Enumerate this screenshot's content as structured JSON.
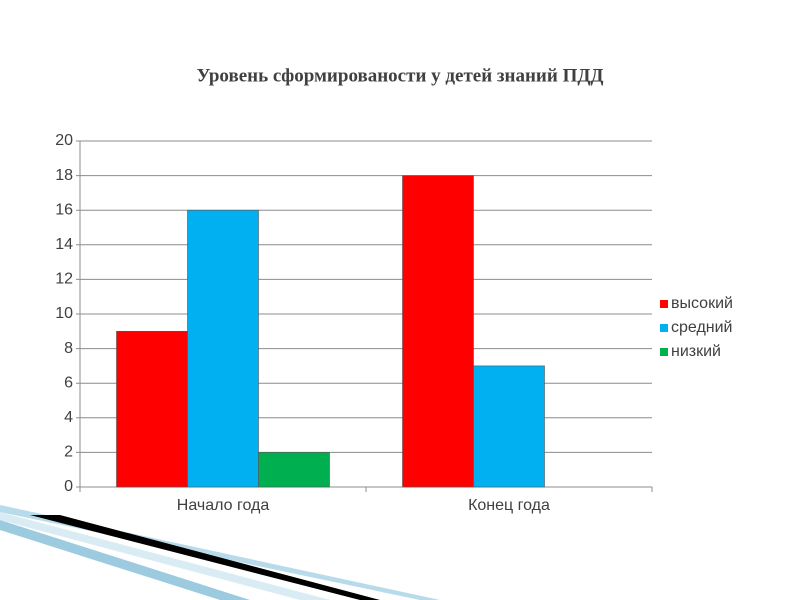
{
  "chart_data": {
    "type": "bar",
    "title": "Уровень сформированости  у детей знаний ПДД",
    "categories": [
      "Начало года",
      "Конец года"
    ],
    "series": [
      {
        "name": "высокий",
        "color": "#ff0000",
        "values": [
          9,
          18
        ]
      },
      {
        "name": "средний",
        "color": "#00b0f0",
        "values": [
          16,
          7
        ]
      },
      {
        "name": "низкий",
        "color": "#00b050",
        "values": [
          2,
          0
        ]
      }
    ],
    "ylim": [
      0,
      20
    ],
    "yticks": [
      0,
      2,
      4,
      6,
      8,
      10,
      12,
      14,
      16,
      18,
      20
    ],
    "grid": true,
    "legend": "right"
  }
}
